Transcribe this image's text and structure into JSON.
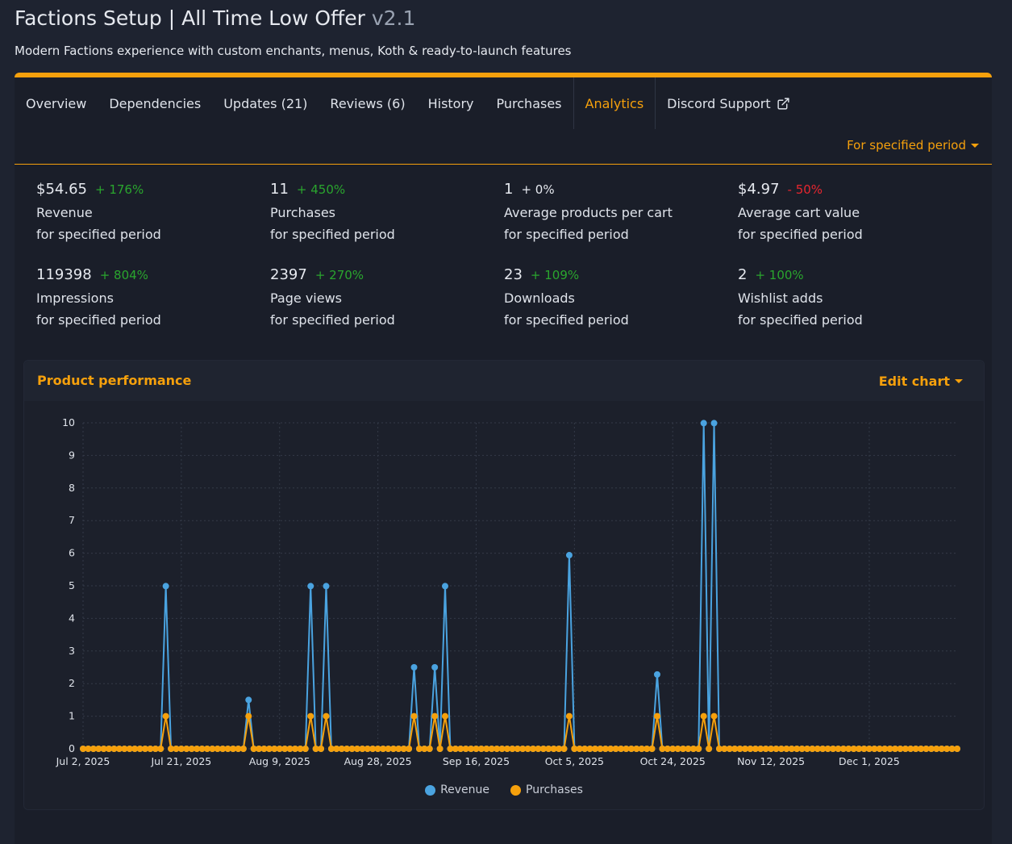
{
  "header": {
    "title": "Factions Setup | All Time Low Offer",
    "version": "v2.1",
    "subtitle": "Modern Factions experience with custom enchants, menus, Koth & ready-to-launch features"
  },
  "tabs": [
    {
      "label": "Overview"
    },
    {
      "label": "Dependencies"
    },
    {
      "label": "Updates (21)"
    },
    {
      "label": "Reviews (6)"
    },
    {
      "label": "History"
    },
    {
      "label": "Purchases"
    },
    {
      "label": "Analytics",
      "active": true
    },
    {
      "label": "Discord Support",
      "icon": "external-link-icon"
    }
  ],
  "period_dropdown": {
    "label": "For specified period"
  },
  "stats": [
    {
      "value": "$54.65",
      "change": "+ 176%",
      "trend": "pos",
      "label": "Revenue",
      "period": "for specified period"
    },
    {
      "value": "11",
      "change": "+ 450%",
      "trend": "pos",
      "label": "Purchases",
      "period": "for specified period"
    },
    {
      "value": "1",
      "change": "+ 0%",
      "trend": "neu",
      "label": "Average products per cart",
      "period": "for specified period"
    },
    {
      "value": "$4.97",
      "change": "- 50%",
      "trend": "neg",
      "label": "Average cart value",
      "period": "for specified period"
    },
    {
      "value": "119398",
      "change": "+ 804%",
      "trend": "pos",
      "label": "Impressions",
      "period": "for specified period"
    },
    {
      "value": "2397",
      "change": "+ 270%",
      "trend": "pos",
      "label": "Page views",
      "period": "for specified period"
    },
    {
      "value": "23",
      "change": "+ 109%",
      "trend": "pos",
      "label": "Downloads",
      "period": "for specified period"
    },
    {
      "value": "2",
      "change": "+ 100%",
      "trend": "pos",
      "label": "Wishlist adds",
      "period": "for specified period"
    }
  ],
  "performance": {
    "title": "Product performance",
    "edit_label": "Edit chart"
  },
  "colors": {
    "accent": "#f5a00c",
    "revenue": "#4aa3e0",
    "purchases": "#f5a00c",
    "positive": "#2aa52e",
    "negative": "#e8262f"
  },
  "chart_data": {
    "type": "line",
    "x_start": "2025-07-02",
    "x_end": "2025-12-18",
    "x_tick_labels": [
      "Jul 2, 2025",
      "Jul 21, 2025",
      "Aug 9, 2025",
      "Aug 28, 2025",
      "Sep 16, 2025",
      "Oct 5, 2025",
      "Oct 24, 2025",
      "Nov 12, 2025",
      "Dec 1, 2025"
    ],
    "y_ticks": [
      0,
      1,
      2,
      3,
      4,
      5,
      6,
      7,
      8,
      9,
      10
    ],
    "ylim": [
      0,
      10
    ],
    "grid": true,
    "legend_position": "bottom-center",
    "default_value": 0,
    "series": [
      {
        "name": "Revenue",
        "color": "#4aa3e0",
        "nonzero": [
          {
            "date": "2025-07-18",
            "value": 4.99
          },
          {
            "date": "2025-08-03",
            "value": 1.5
          },
          {
            "date": "2025-08-15",
            "value": 4.99
          },
          {
            "date": "2025-08-18",
            "value": 4.99
          },
          {
            "date": "2025-09-04",
            "value": 2.5
          },
          {
            "date": "2025-09-08",
            "value": 2.5
          },
          {
            "date": "2025-09-10",
            "value": 4.99
          },
          {
            "date": "2025-10-04",
            "value": 5.94
          },
          {
            "date": "2025-10-21",
            "value": 2.28
          },
          {
            "date": "2025-10-30",
            "value": 9.99
          },
          {
            "date": "2025-11-01",
            "value": 9.99
          }
        ]
      },
      {
        "name": "Purchases",
        "color": "#f5a00c",
        "nonzero": [
          {
            "date": "2025-07-18",
            "value": 1
          },
          {
            "date": "2025-08-03",
            "value": 1
          },
          {
            "date": "2025-08-15",
            "value": 1
          },
          {
            "date": "2025-08-18",
            "value": 1
          },
          {
            "date": "2025-09-04",
            "value": 1
          },
          {
            "date": "2025-09-08",
            "value": 1
          },
          {
            "date": "2025-09-10",
            "value": 1
          },
          {
            "date": "2025-10-04",
            "value": 1
          },
          {
            "date": "2025-10-21",
            "value": 1
          },
          {
            "date": "2025-10-30",
            "value": 1
          },
          {
            "date": "2025-11-01",
            "value": 1
          }
        ]
      }
    ]
  }
}
